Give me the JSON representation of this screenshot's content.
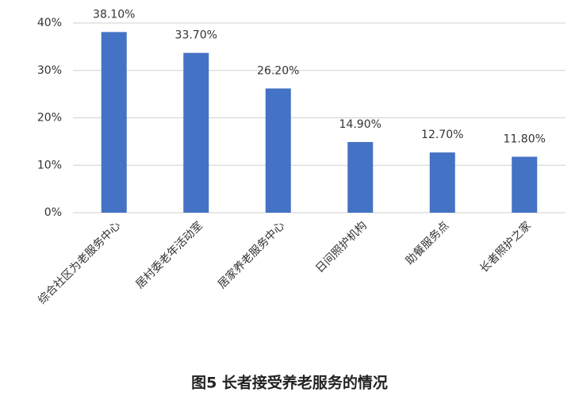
{
  "chart_data": {
    "type": "bar",
    "title": "图5 长者接受养老服务的情况",
    "categories": [
      "综合社区为老服务中心",
      "居村委老年活动室",
      "居家养老服务中心",
      "日间照护机构",
      "助餐服务点",
      "长者照护之家"
    ],
    "values": [
      38.1,
      33.7,
      26.2,
      14.9,
      12.7,
      11.8
    ],
    "value_labels": [
      "38.10%",
      "33.70%",
      "26.20%",
      "14.90%",
      "12.70%",
      "11.80%"
    ],
    "color": "#4472c4",
    "ylim": [
      0,
      40
    ],
    "yticks": [
      {
        "value": 0,
        "label": "0%"
      },
      {
        "value": 10,
        "label": "10%"
      },
      {
        "value": 20,
        "label": "20%"
      },
      {
        "value": 30,
        "label": "30%"
      },
      {
        "value": 40,
        "label": "40%"
      }
    ],
    "grid": true
  }
}
